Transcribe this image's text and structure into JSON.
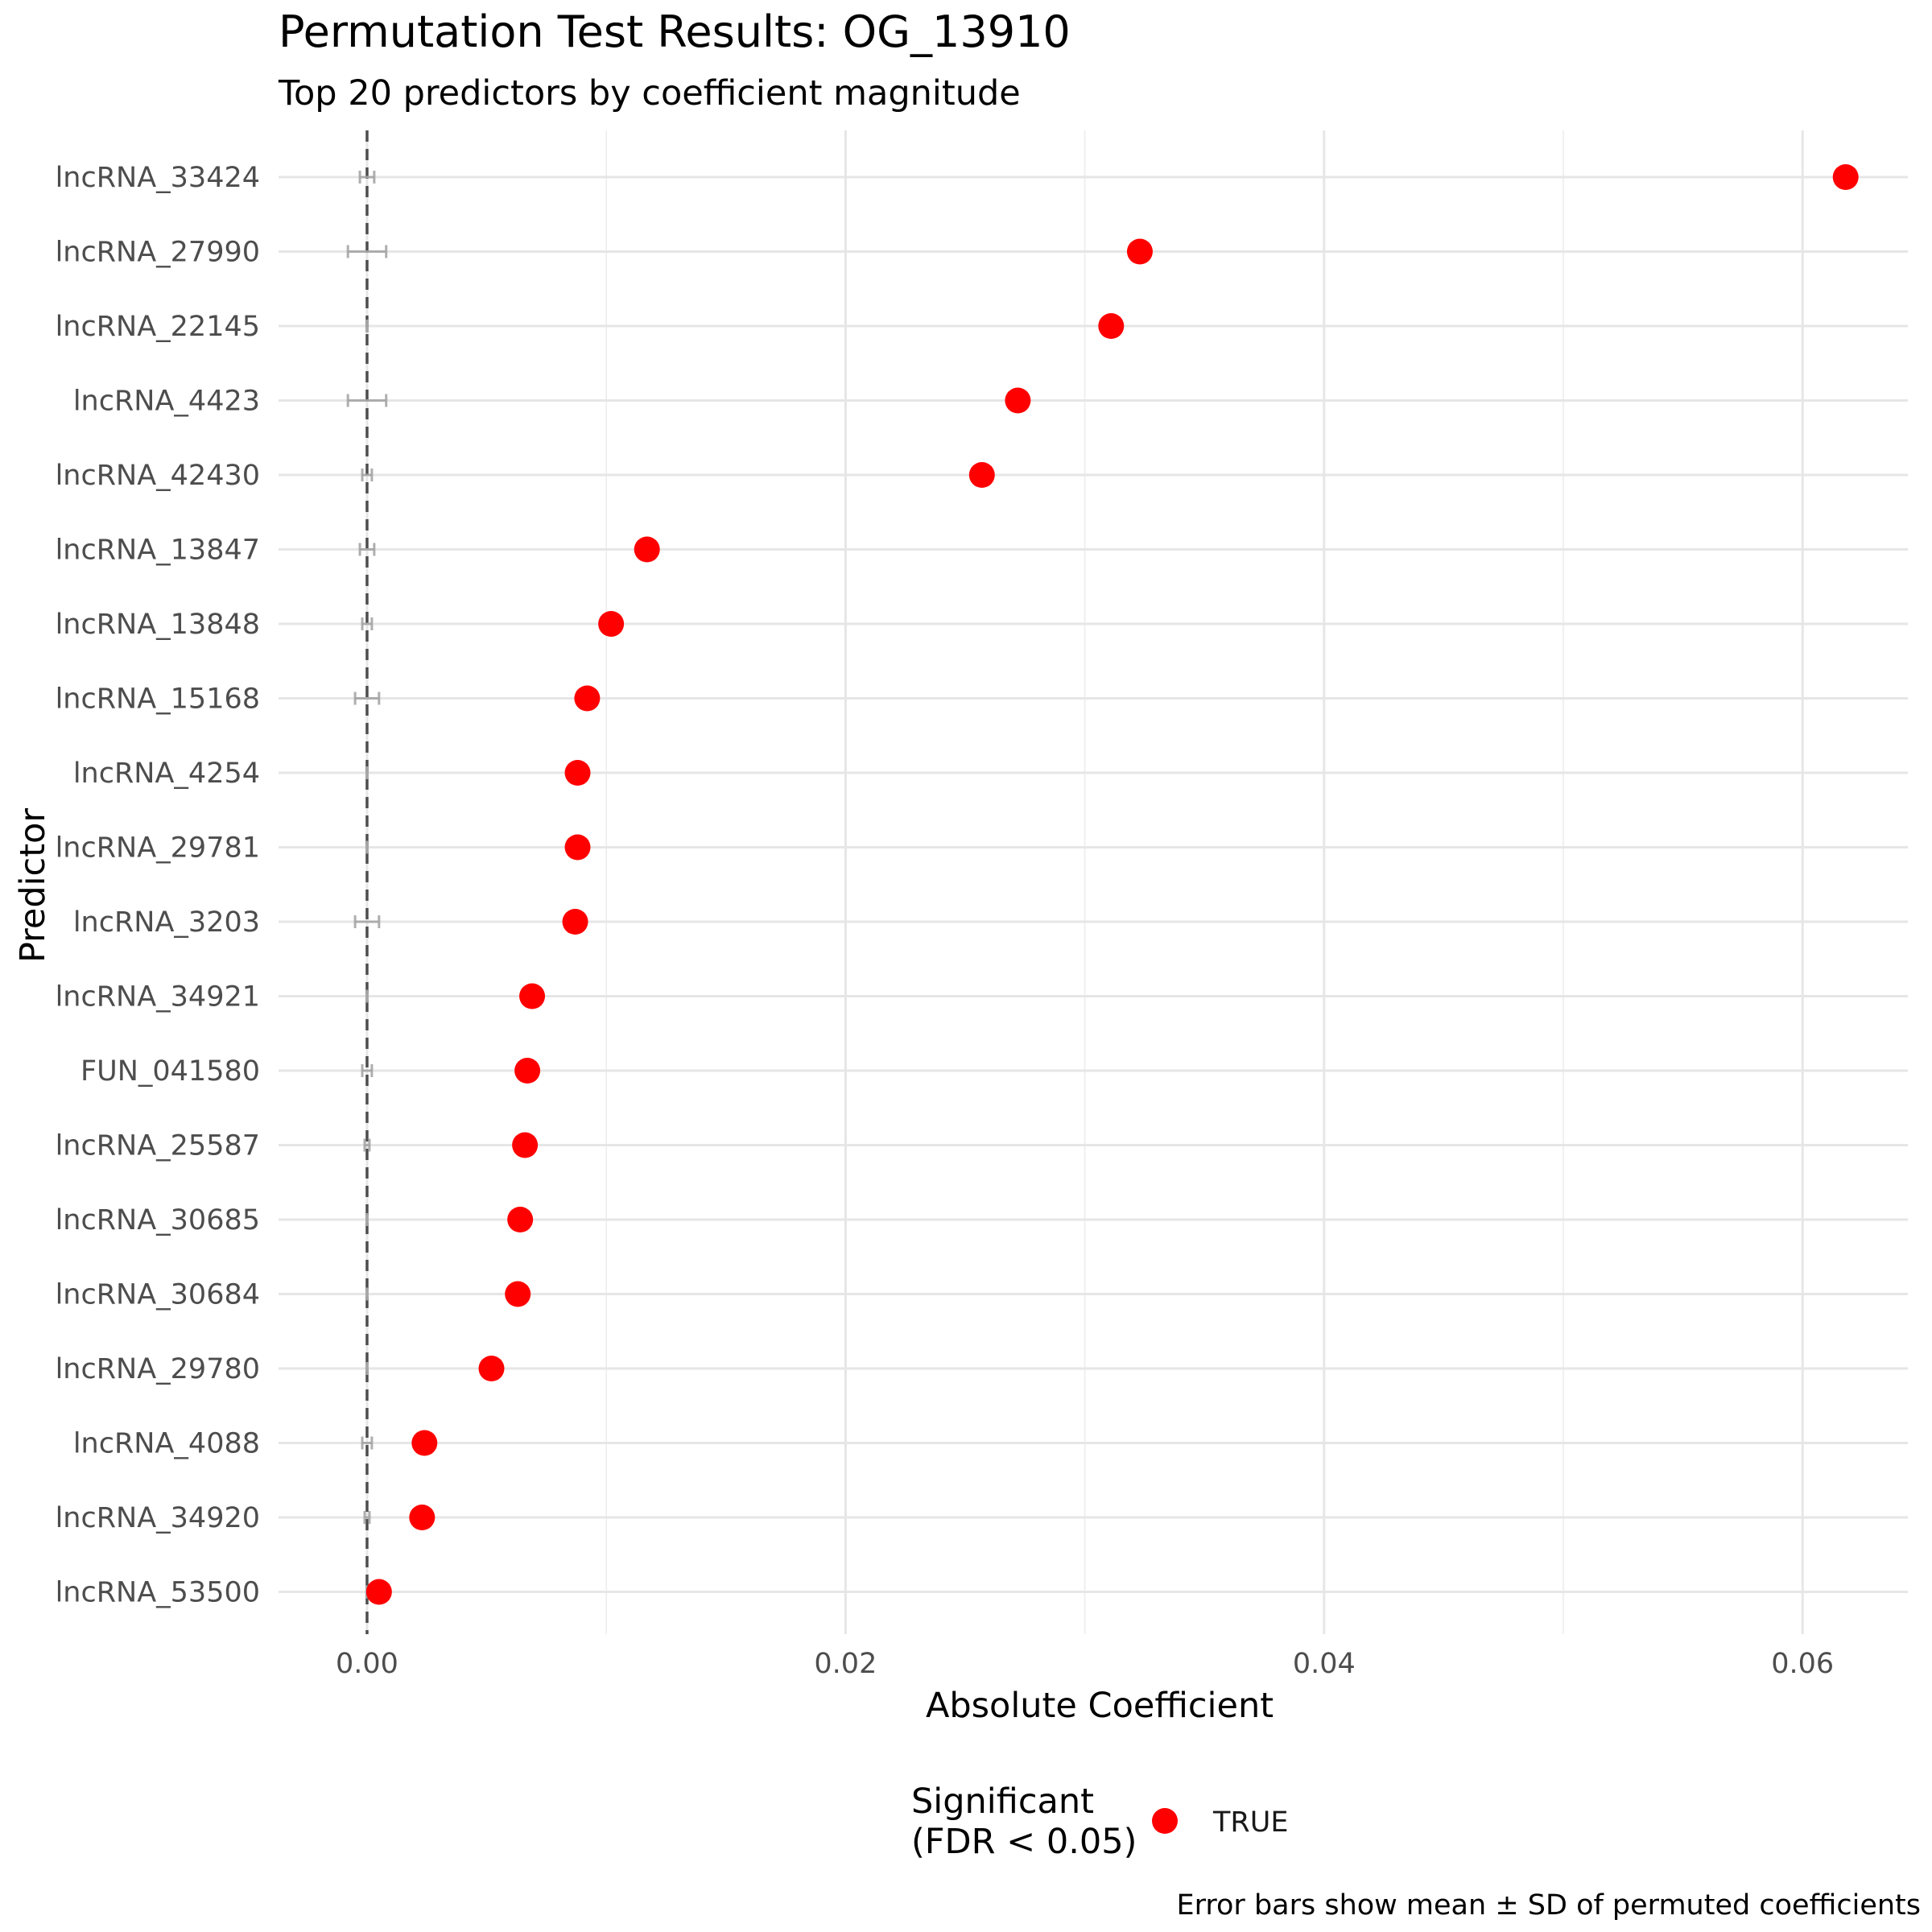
{
  "chart_data": {
    "type": "scatter",
    "orientation": "horizontal",
    "title": "Permutation Test Results: OG_13910",
    "subtitle": "Top 20 predictors by coefficient magnitude",
    "xlabel": "Absolute Coefficient",
    "ylabel": "Predictor",
    "caption": "Error bars show mean ± SD of permuted coefficients",
    "xlim": [
      -0.0037,
      0.0644
    ],
    "x_ticks": [
      0.0,
      0.02,
      0.04,
      0.06
    ],
    "x_tick_labels": [
      "0.00",
      "0.02",
      "0.04",
      "0.06"
    ],
    "reference_line_x": 0.0,
    "grid": true,
    "point_color": "#ff0000",
    "errorbar_color": "#a6a6a6",
    "legend": {
      "title_line1": "Significant",
      "title_line2": "(FDR < 0.05)",
      "placement": "bottom",
      "items": [
        {
          "label": "TRUE",
          "color": "#ff0000"
        }
      ]
    },
    "categories": [
      "lncRNA_33424",
      "lncRNA_27990",
      "lncRNA_22145",
      "lncRNA_4423",
      "lncRNA_42430",
      "lncRNA_13847",
      "lncRNA_13848",
      "lncRNA_15168",
      "lncRNA_4254",
      "lncRNA_29781",
      "lncRNA_3203",
      "lncRNA_34921",
      "FUN_041580",
      "lncRNA_25587",
      "lncRNA_30685",
      "lncRNA_30684",
      "lncRNA_29780",
      "lncRNA_4088",
      "lncRNA_34920",
      "lncRNA_53500"
    ],
    "values": [
      0.0618,
      0.0323,
      0.0311,
      0.0272,
      0.0257,
      0.0117,
      0.0102,
      0.0092,
      0.0088,
      0.0088,
      0.0087,
      0.0069,
      0.0067,
      0.0066,
      0.0064,
      0.0063,
      0.0052,
      0.0024,
      0.0023,
      0.0005
    ],
    "perm_mean": [
      0.0,
      0.0,
      0.0,
      0.0,
      0.0,
      0.0,
      0.0,
      0.0,
      0.0,
      0.0,
      0.0,
      0.0,
      0.0,
      0.0,
      0.0,
      0.0,
      0.0,
      0.0,
      0.0,
      0.0
    ],
    "perm_sd": [
      0.0003,
      0.0008,
      2e-05,
      0.0008,
      0.0002,
      0.0003,
      0.0002,
      0.0005,
      2e-05,
      2e-05,
      0.0005,
      2e-05,
      0.0002,
      0.0001,
      2e-05,
      2e-05,
      2e-05,
      0.0002,
      0.0001,
      2e-05
    ],
    "significant": [
      true,
      true,
      true,
      true,
      true,
      true,
      true,
      true,
      true,
      true,
      true,
      true,
      true,
      true,
      true,
      true,
      true,
      true,
      true,
      true
    ]
  }
}
